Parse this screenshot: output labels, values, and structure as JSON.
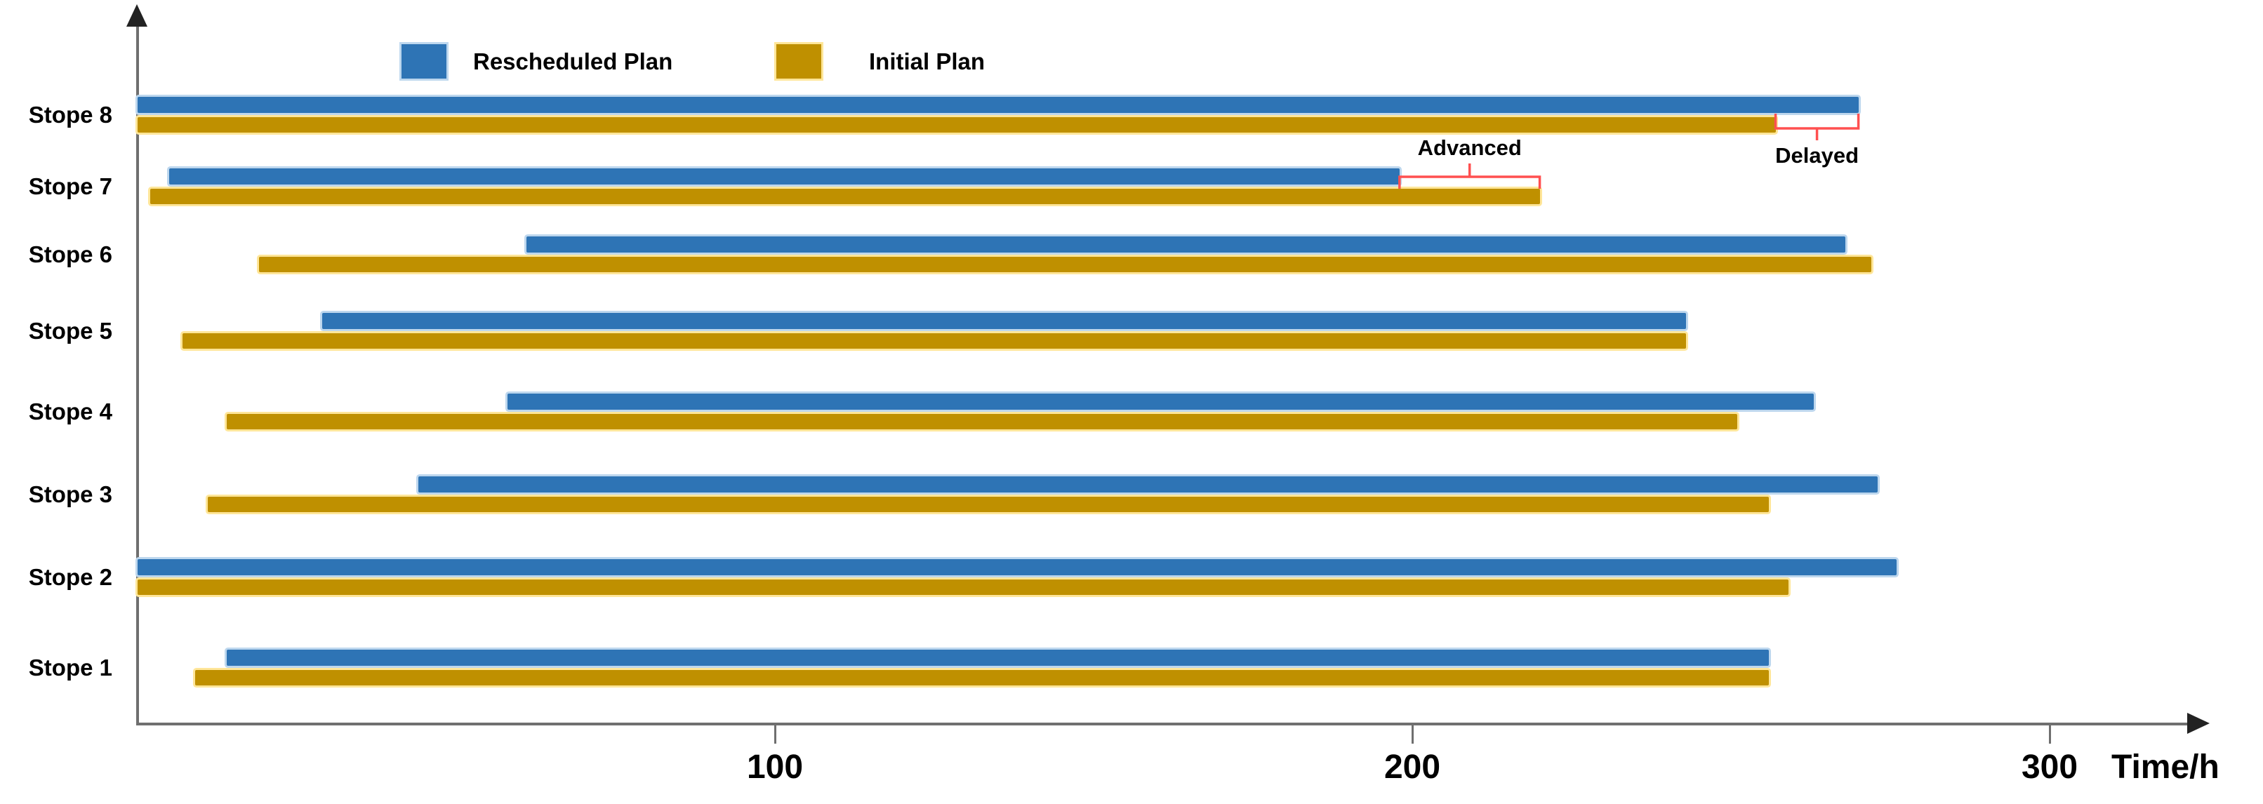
{
  "chart_data": {
    "type": "bar",
    "variant": "gantt",
    "orientation": "horizontal",
    "title": "",
    "xlabel": "Time/h",
    "ylabel": "",
    "xlim": [
      0,
      320
    ],
    "xticks": [
      100,
      200,
      300
    ],
    "grid": false,
    "legend_position": "top",
    "categories": [
      "Stope 8",
      "Stope 7",
      "Stope 6",
      "Stope 5",
      "Stope 4",
      "Stope 3",
      "Stope 2",
      "Stope 1"
    ],
    "series": [
      {
        "name": "Rescheduled Plan",
        "color": "#2E74B5",
        "halo": "#BDD7EE",
        "ranges": [
          [
            0,
            270
          ],
          [
            5,
            198
          ],
          [
            61,
            268
          ],
          [
            29,
            243
          ],
          [
            58,
            263
          ],
          [
            44,
            273
          ],
          [
            0,
            276
          ],
          [
            14,
            256
          ]
        ]
      },
      {
        "name": "Initial Plan",
        "color": "#BF9000",
        "halo": "#FFE699",
        "ranges": [
          [
            0,
            257
          ],
          [
            2,
            220
          ],
          [
            19,
            272
          ],
          [
            7,
            243
          ],
          [
            14,
            251
          ],
          [
            11,
            256
          ],
          [
            0,
            259
          ],
          [
            9,
            256
          ]
        ]
      }
    ],
    "annotations": [
      {
        "label": "Advanced",
        "category": "Stope 7",
        "from": 198,
        "to": 220,
        "label_position": "above",
        "color": "#FF5050"
      },
      {
        "label": "Delayed",
        "category": "Stope 8",
        "from": 257,
        "to": 270,
        "label_position": "below",
        "color": "#FF5050"
      }
    ]
  },
  "axis_color": "#6f6f6f",
  "arrow_color": "#222222"
}
